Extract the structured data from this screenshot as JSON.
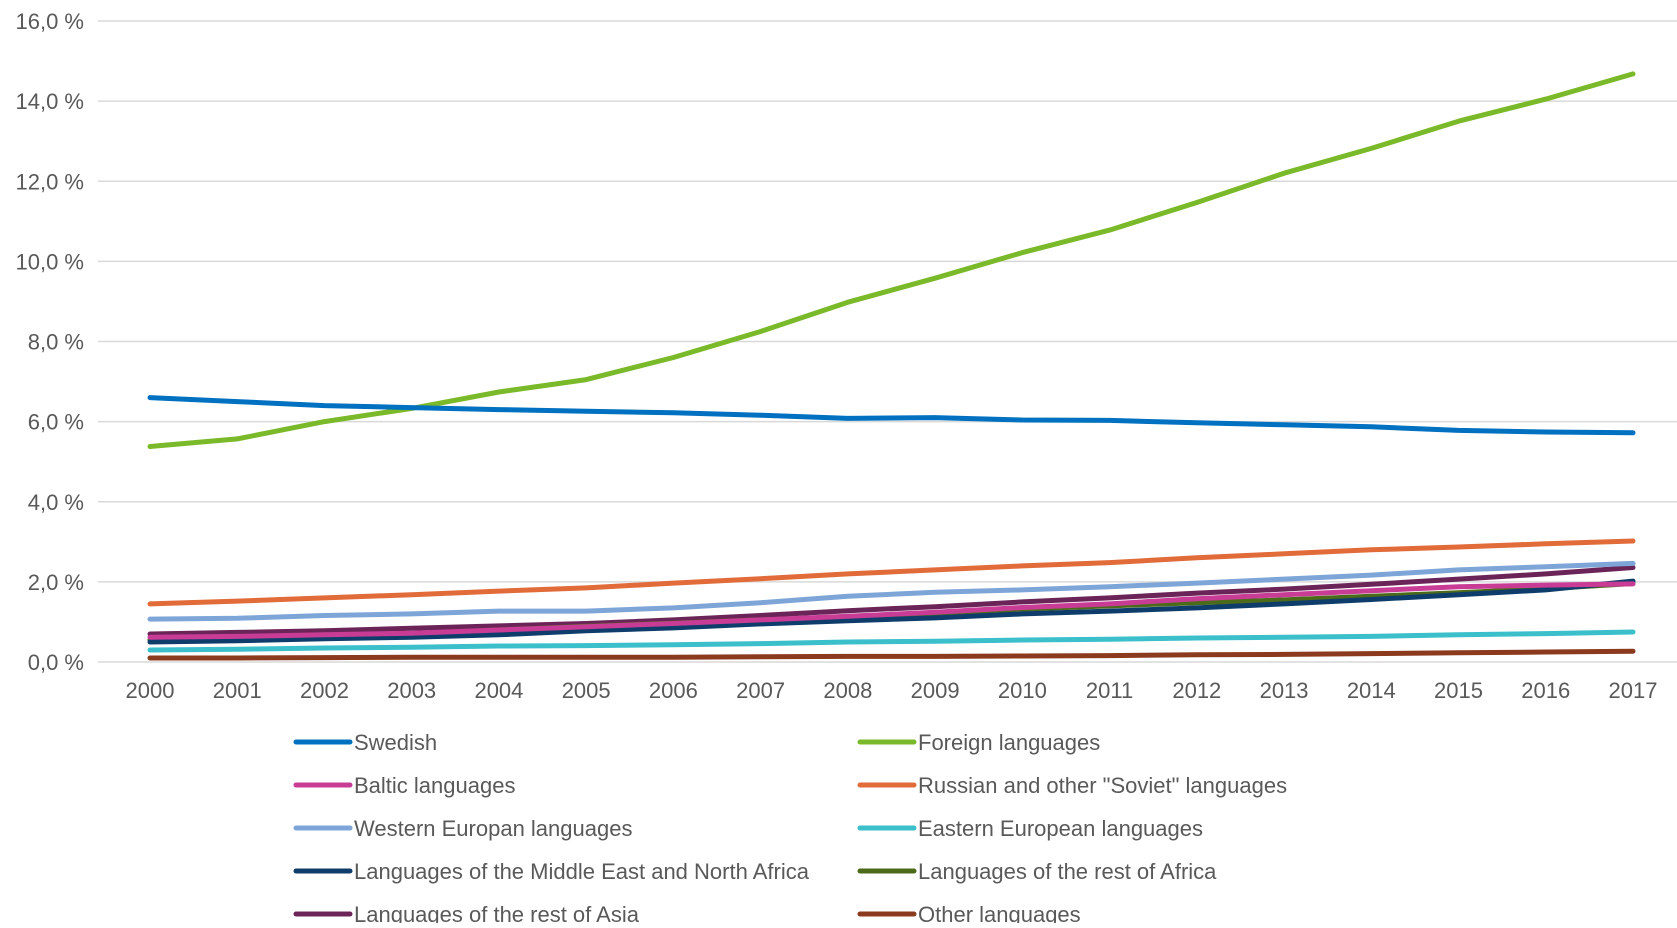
{
  "chart_data": {
    "type": "line",
    "title": "",
    "xlabel": "",
    "ylabel": "",
    "ylim": [
      0,
      16
    ],
    "y_ticks": [
      0,
      2,
      4,
      6,
      8,
      10,
      12,
      14,
      16
    ],
    "y_tick_labels": [
      "0,0 %",
      "2,0 %",
      "4,0 %",
      "6,0 %",
      "8,0 %",
      "10,0 %",
      "12,0 %",
      "14,0 %",
      "16,0 %"
    ],
    "grid": "horizontal",
    "legend_position": "bottom",
    "categories": [
      "2000",
      "2001",
      "2002",
      "2003",
      "2004",
      "2005",
      "2006",
      "2007",
      "2008",
      "2009",
      "2010",
      "2011",
      "2012",
      "2013",
      "2014",
      "2015",
      "2016",
      "2017"
    ],
    "series": [
      {
        "name": "Swedish",
        "color": "#0070C0",
        "values": [
          6.6,
          6.5,
          6.4,
          6.35,
          6.3,
          6.26,
          6.22,
          6.16,
          6.08,
          6.1,
          6.04,
          6.03,
          5.97,
          5.92,
          5.87,
          5.78,
          5.74,
          5.72
        ]
      },
      {
        "name": "Foreign languages",
        "color": "#7AB929",
        "values": [
          5.38,
          5.57,
          6.0,
          6.33,
          6.74,
          7.05,
          7.6,
          8.25,
          8.98,
          9.58,
          10.22,
          10.78,
          11.47,
          12.2,
          12.82,
          13.5,
          14.05,
          14.68
        ]
      },
      {
        "name": "Baltic languages",
        "color": "#C83C96",
        "values": [
          0.62,
          0.64,
          0.68,
          0.72,
          0.8,
          0.88,
          0.96,
          1.05,
          1.14,
          1.24,
          1.36,
          1.45,
          1.58,
          1.68,
          1.78,
          1.88,
          1.92,
          1.95
        ]
      },
      {
        "name": "Russian and other \"Soviet\" languages",
        "color": "#E26B3A",
        "values": [
          1.45,
          1.52,
          1.6,
          1.68,
          1.77,
          1.85,
          1.97,
          2.08,
          2.2,
          2.3,
          2.4,
          2.48,
          2.6,
          2.7,
          2.8,
          2.87,
          2.95,
          3.02
        ]
      },
      {
        "name": "Western Europan languages",
        "color": "#7EA5D8",
        "values": [
          1.07,
          1.09,
          1.16,
          1.2,
          1.27,
          1.27,
          1.35,
          1.48,
          1.64,
          1.74,
          1.8,
          1.88,
          1.97,
          2.07,
          2.17,
          2.3,
          2.38,
          2.46
        ]
      },
      {
        "name": "Eastern European languages",
        "color": "#3ABFCB",
        "values": [
          0.3,
          0.32,
          0.35,
          0.37,
          0.4,
          0.41,
          0.43,
          0.46,
          0.5,
          0.52,
          0.55,
          0.57,
          0.6,
          0.62,
          0.64,
          0.68,
          0.71,
          0.75
        ]
      },
      {
        "name": "Languages of the Middle East and North Africa",
        "color": "#0F3D6B",
        "values": [
          0.5,
          0.53,
          0.58,
          0.62,
          0.68,
          0.78,
          0.85,
          0.95,
          1.03,
          1.1,
          1.2,
          1.27,
          1.35,
          1.45,
          1.56,
          1.68,
          1.8,
          2.02
        ]
      },
      {
        "name": "Languages of the rest of Africa",
        "color": "#4C6B1A",
        "values": [
          0.55,
          0.6,
          0.66,
          0.71,
          0.8,
          0.89,
          0.97,
          1.05,
          1.12,
          1.22,
          1.32,
          1.4,
          1.48,
          1.55,
          1.64,
          1.73,
          1.83,
          1.96
        ]
      },
      {
        "name": "Languages of the rest of Asia",
        "color": "#6B2458",
        "values": [
          0.7,
          0.74,
          0.78,
          0.84,
          0.9,
          0.96,
          1.05,
          1.16,
          1.28,
          1.38,
          1.5,
          1.6,
          1.72,
          1.82,
          1.94,
          2.07,
          2.2,
          2.36
        ]
      },
      {
        "name": "Other languages",
        "color": "#8B3A1E",
        "values": [
          0.1,
          0.1,
          0.11,
          0.12,
          0.12,
          0.12,
          0.12,
          0.13,
          0.14,
          0.14,
          0.15,
          0.16,
          0.18,
          0.19,
          0.21,
          0.23,
          0.25,
          0.27
        ]
      }
    ]
  }
}
